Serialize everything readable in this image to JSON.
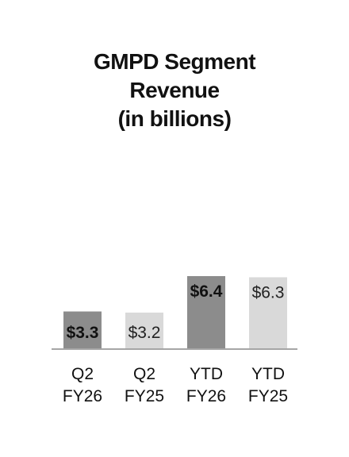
{
  "chart_data": {
    "type": "bar",
    "title_lines": [
      "GMPD Segment",
      "Revenue",
      "(in billions)"
    ],
    "categories": [
      [
        "Q2",
        "FY26"
      ],
      [
        "Q2",
        "FY25"
      ],
      [
        "YTD",
        "FY26"
      ],
      [
        "YTD",
        "FY25"
      ]
    ],
    "values": [
      3.3,
      3.2,
      6.4,
      6.3
    ],
    "data_labels": [
      "$3.3",
      "$3.2",
      "$6.4",
      "$6.3"
    ],
    "bar_colors": [
      "#8c8c8c",
      "#d9d9d9",
      "#8c8c8c",
      "#d9d9d9"
    ],
    "label_bold": [
      true,
      false,
      true,
      false
    ],
    "ylim": [
      0,
      6.4
    ],
    "grid": false,
    "legend": "none"
  }
}
